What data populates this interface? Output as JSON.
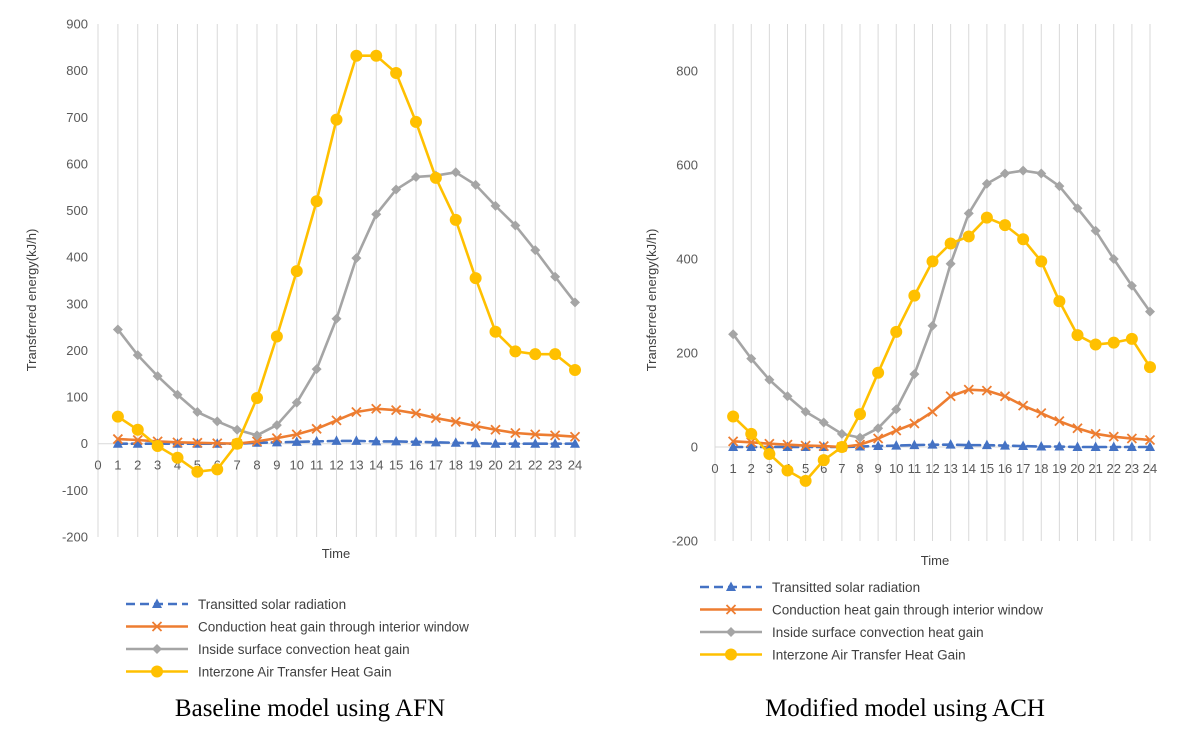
{
  "chart_data": [
    {
      "type": "line",
      "caption": "Baseline model using AFN",
      "xlabel": "Time",
      "ylabel": "Transferred energy(kJ/h)",
      "ylim": [
        -200,
        900
      ],
      "yticks": [
        -200,
        -100,
        0,
        100,
        200,
        300,
        400,
        500,
        600,
        700,
        800,
        900
      ],
      "x": [
        1,
        2,
        3,
        4,
        5,
        6,
        7,
        8,
        9,
        10,
        11,
        12,
        13,
        14,
        15,
        16,
        17,
        18,
        19,
        20,
        21,
        22,
        23,
        24
      ],
      "xtick_labels": [
        "0",
        "1",
        "2",
        "3",
        "4",
        "5",
        "6",
        "7",
        "8",
        "9",
        "10",
        "11",
        "12",
        "13",
        "14",
        "15",
        "16",
        "17",
        "18",
        "19",
        "20",
        "21",
        "22",
        "23",
        "24"
      ],
      "grid": "vertical",
      "series": [
        {
          "name": "Transitted solar radiation",
          "color": "#4472C4",
          "marker": "triangle",
          "dash": true,
          "values": [
            0,
            0,
            0,
            0,
            0,
            0,
            0,
            2,
            3,
            4,
            5,
            6,
            6,
            5,
            5,
            4,
            3,
            2,
            1,
            0,
            0,
            0,
            0,
            0
          ]
        },
        {
          "name": "Conduction heat gain through interior window",
          "color": "#ED7D31",
          "marker": "x",
          "dash": false,
          "values": [
            10,
            8,
            5,
            3,
            2,
            1,
            0,
            5,
            12,
            20,
            32,
            50,
            68,
            75,
            72,
            65,
            55,
            47,
            38,
            30,
            23,
            20,
            18,
            15
          ]
        },
        {
          "name": "Inside surface convection heat gain",
          "color": "#A5A5A5",
          "marker": "diamond",
          "dash": false,
          "values": [
            245,
            190,
            145,
            105,
            68,
            48,
            30,
            18,
            40,
            88,
            160,
            268,
            398,
            492,
            545,
            572,
            575,
            582,
            555,
            510,
            468,
            415,
            358,
            303
          ]
        },
        {
          "name": "Interzone Air Transfer Heat Gain",
          "color": "#FFC000",
          "marker": "circle",
          "dash": false,
          "values": [
            58,
            30,
            -5,
            -30,
            -60,
            -55,
            0,
            98,
            230,
            370,
            520,
            695,
            832,
            832,
            795,
            690,
            570,
            480,
            355,
            240,
            198,
            192,
            192,
            158
          ]
        }
      ]
    },
    {
      "type": "line",
      "caption": "Modified model using ACH",
      "xlabel": "Time",
      "ylabel": "Transferred energy(kJ/h)",
      "ylim": [
        -200,
        900
      ],
      "yticks": [
        -200,
        0,
        200,
        400,
        600,
        800
      ],
      "x": [
        1,
        2,
        3,
        4,
        5,
        6,
        7,
        8,
        9,
        10,
        11,
        12,
        13,
        14,
        15,
        16,
        17,
        18,
        19,
        20,
        21,
        22,
        23,
        24
      ],
      "xtick_labels": [
        "0",
        "1",
        "2",
        "3",
        "4",
        "5",
        "6",
        "7",
        "8",
        "9",
        "10",
        "11",
        "12",
        "13",
        "14",
        "15",
        "16",
        "17",
        "18",
        "19",
        "20",
        "21",
        "22",
        "23",
        "24"
      ],
      "grid": "vertical",
      "series": [
        {
          "name": "Transitted solar radiation",
          "color": "#4472C4",
          "marker": "triangle",
          "dash": true,
          "values": [
            0,
            0,
            0,
            0,
            0,
            0,
            0,
            1,
            2,
            3,
            4,
            5,
            5,
            4,
            4,
            3,
            2,
            1,
            1,
            0,
            0,
            0,
            0,
            0
          ]
        },
        {
          "name": "Conduction heat gain through interior window",
          "color": "#ED7D31",
          "marker": "x",
          "dash": false,
          "values": [
            12,
            10,
            7,
            5,
            3,
            2,
            0,
            5,
            18,
            35,
            50,
            75,
            108,
            122,
            120,
            108,
            88,
            72,
            55,
            40,
            28,
            22,
            18,
            15
          ]
        },
        {
          "name": "Inside surface convection heat gain",
          "color": "#A5A5A5",
          "marker": "diamond",
          "dash": false,
          "values": [
            240,
            188,
            143,
            108,
            75,
            52,
            28,
            20,
            40,
            80,
            155,
            258,
            390,
            497,
            560,
            582,
            588,
            582,
            555,
            508,
            460,
            400,
            343,
            288
          ]
        },
        {
          "name": "Interzone Air Transfer Heat Gain",
          "color": "#FFC000",
          "marker": "circle",
          "dash": false,
          "values": [
            65,
            28,
            -15,
            -50,
            -72,
            -28,
            0,
            70,
            158,
            245,
            322,
            395,
            433,
            448,
            488,
            472,
            442,
            395,
            310,
            238,
            218,
            222,
            230,
            170
          ]
        }
      ]
    }
  ]
}
